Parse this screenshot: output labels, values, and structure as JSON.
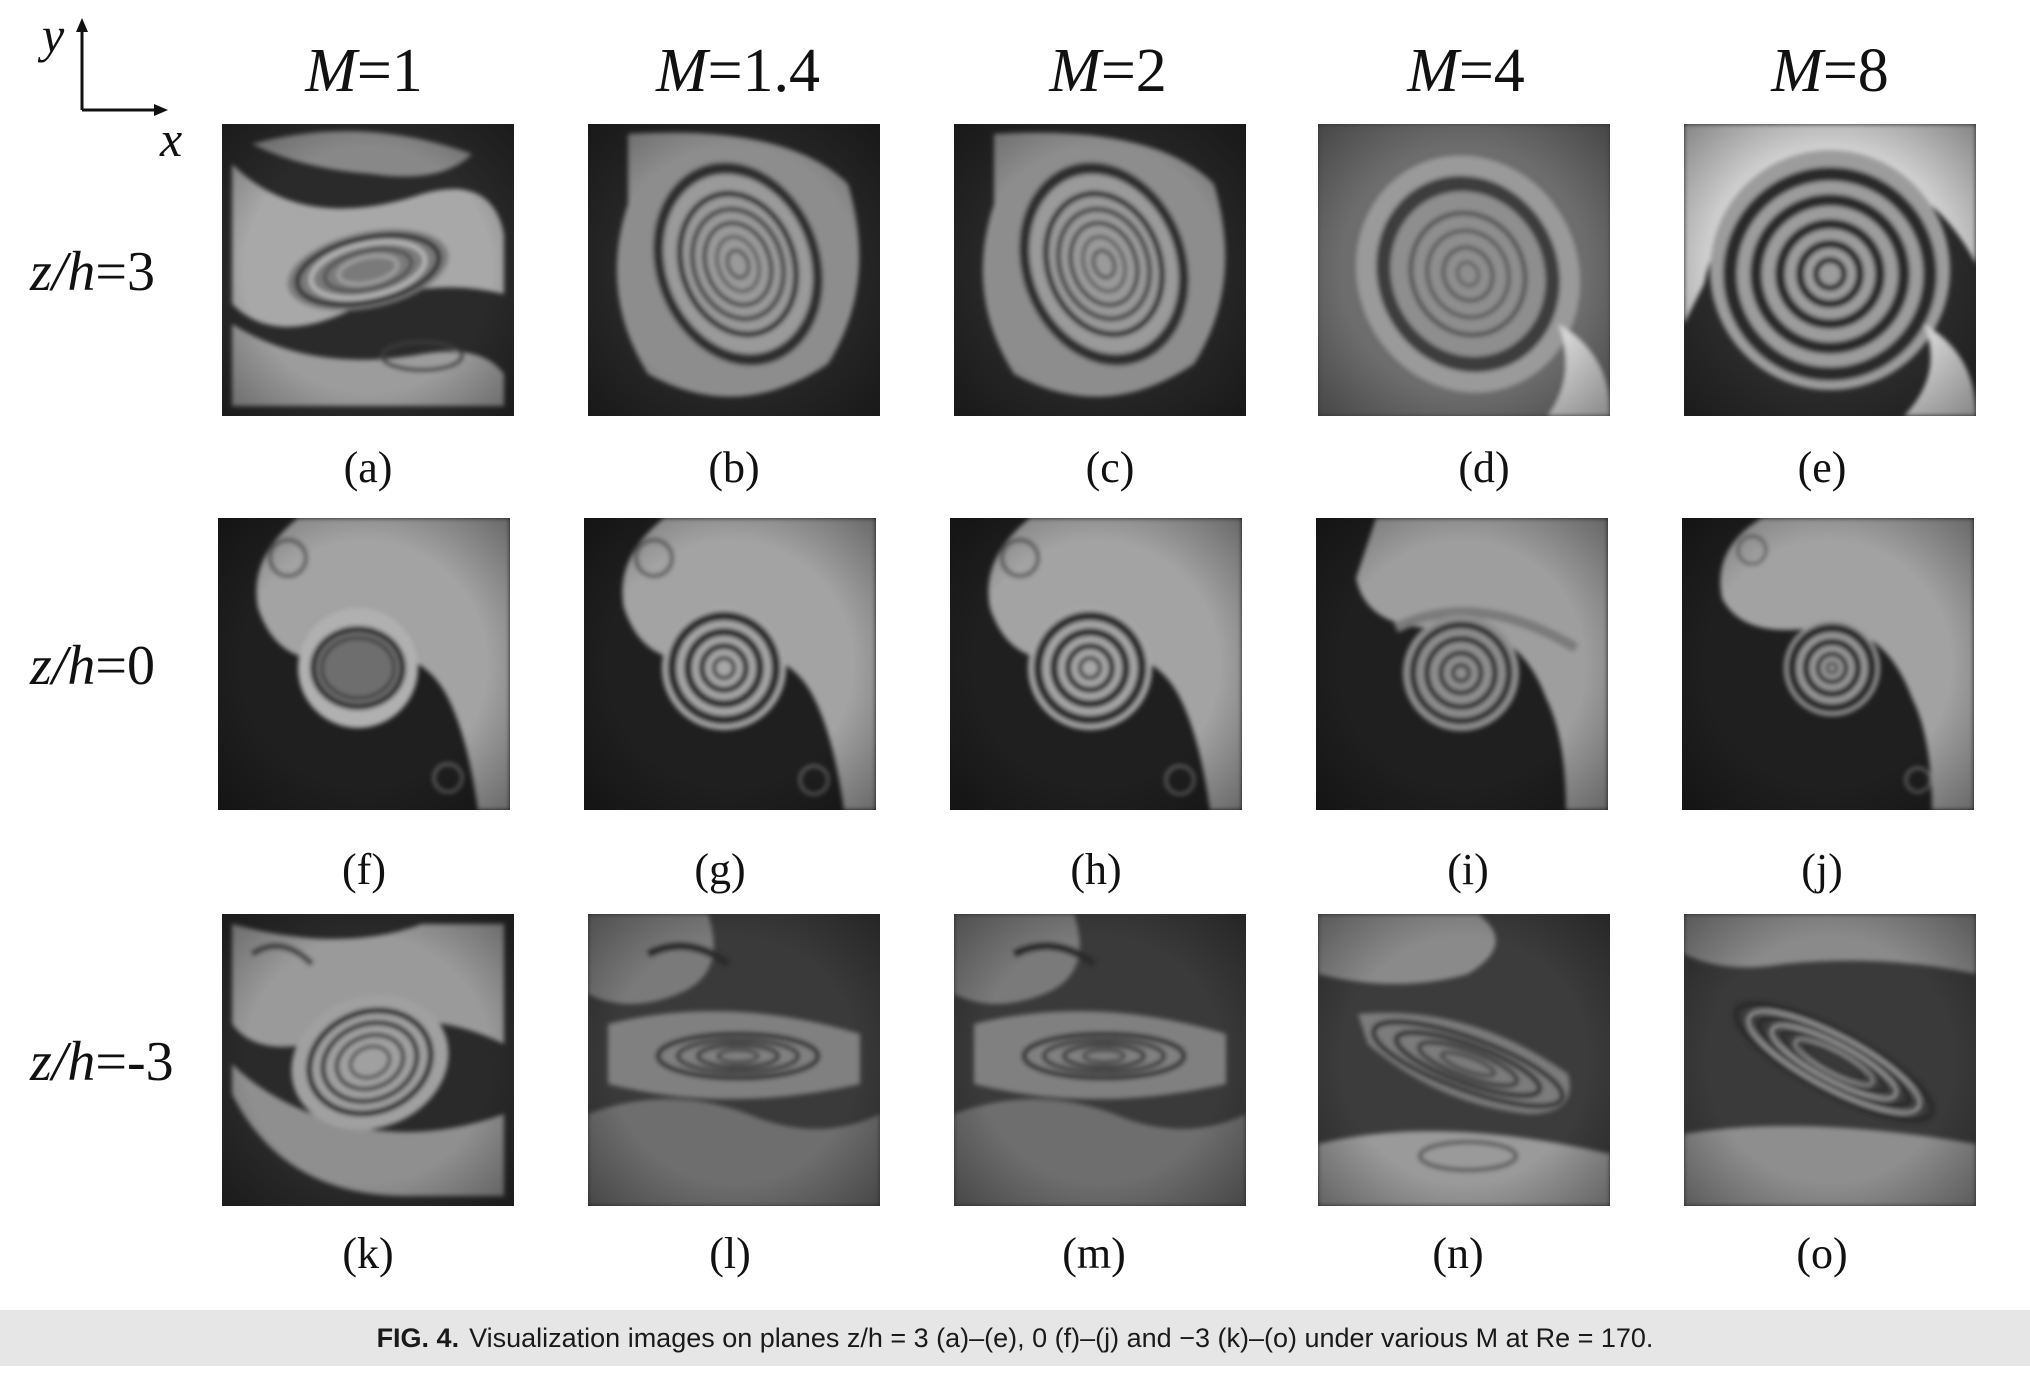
{
  "axes": {
    "y_label": "y",
    "x_label": "x"
  },
  "columns": [
    "M=1",
    "M=1.4",
    "M=2",
    "M=4",
    "M=8"
  ],
  "rows": [
    "z/h=3",
    "z/h=0",
    "z/h=-3"
  ],
  "panel_labels": [
    [
      "(a)",
      "(b)",
      "(c)",
      "(d)",
      "(e)"
    ],
    [
      "(f)",
      "(g)",
      "(h)",
      "(i)",
      "(j)"
    ],
    [
      "(k)",
      "(l)",
      "(m)",
      "(n)",
      "(o)"
    ]
  ],
  "caption": {
    "figure": "FIG. 4.",
    "text": "Visualization images on planes z/h = 3 (a)–(e), 0 (f)–(j) and −3 (k)–(o) under various M at Re = 170."
  }
}
